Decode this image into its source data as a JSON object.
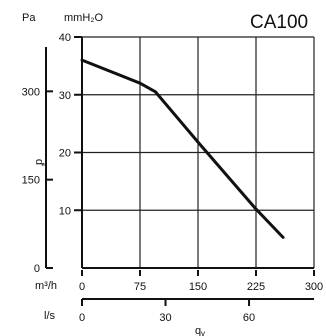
{
  "chart_data": {
    "type": "line",
    "title": "CA100",
    "left_axis_unit": "Pa",
    "right_axis_unit": "mmH₂O",
    "y_axis_symbol": "p",
    "y_axis_symbol_sub": "t",
    "x_axis_symbol": "q",
    "x_axis_symbol_sub": "v",
    "primary_x_unit": "m³/h",
    "secondary_x_unit": "l/s",
    "x_range": [
      0,
      300
    ],
    "y_range": [
      0,
      40
    ],
    "primary_x_ticks": [
      0,
      75,
      150,
      225,
      300
    ],
    "secondary_x_ticks": [
      0,
      30,
      60
    ],
    "y_ticks_mmh2o": [
      10,
      20,
      30,
      40
    ],
    "y_ticks_pa": [
      0,
      150,
      300
    ],
    "grid": true,
    "series": [
      {
        "x": [
          0,
          75,
          95,
          150,
          225,
          260
        ],
        "y": [
          36,
          32,
          30.5,
          21.8,
          10.2,
          5.3
        ]
      }
    ]
  },
  "icons": {
    "flow_axis_icon": "flow-axis-icon"
  }
}
